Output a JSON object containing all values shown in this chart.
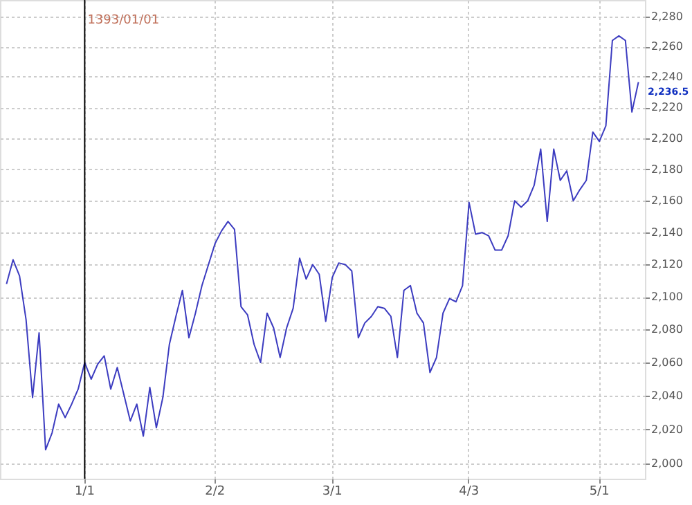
{
  "chart_data": {
    "type": "line",
    "categories": [
      null,
      null,
      null,
      null,
      null,
      null,
      null,
      null,
      null,
      null,
      null,
      null,
      "1/1",
      null,
      null,
      null,
      null,
      null,
      null,
      null,
      null,
      null,
      null,
      null,
      null,
      null,
      null,
      null,
      null,
      null,
      null,
      null,
      "2/2",
      null,
      null,
      null,
      null,
      null,
      null,
      null,
      null,
      null,
      null,
      null,
      null,
      null,
      null,
      null,
      null,
      null,
      "3/1",
      null,
      null,
      null,
      null,
      null,
      null,
      null,
      null,
      null,
      null,
      null,
      null,
      null,
      null,
      null,
      null,
      null,
      null,
      null,
      null,
      "4/3",
      null,
      null,
      null,
      null,
      null,
      null,
      null,
      null,
      null,
      null,
      null,
      null,
      null,
      null,
      null,
      null,
      null,
      null,
      null,
      "5/1",
      null,
      null,
      null,
      null,
      null,
      null
    ],
    "series": [
      {
        "color": "#3c3cc0",
        "values": [
          2108,
          2123,
          2113,
          2086,
          2039,
          2078,
          2008,
          2018,
          2035,
          2027,
          2035,
          2044,
          2060,
          2050,
          2059,
          2064,
          2044,
          2057,
          2041,
          2025,
          2035,
          2016,
          2045,
          2021,
          2039,
          2071,
          2088,
          2104,
          2075,
          2090,
          2107,
          2120,
          2133,
          2141,
          2147,
          2142,
          2094,
          2089,
          2071,
          2060,
          2090,
          2081,
          2063,
          2081,
          2093,
          2124,
          2111,
          2120,
          2114,
          2085,
          2112,
          2121,
          2120,
          2116,
          2075,
          2084,
          2088,
          2094,
          2093,
          2088,
          2063,
          2104,
          2107,
          2090,
          2084,
          2054,
          2063,
          2090,
          2099,
          2097,
          2107,
          2159,
          2139,
          2140,
          2138,
          2129,
          2129,
          2138,
          2160,
          2156,
          2160,
          2170,
          2193,
          2147,
          2193,
          2173,
          2179,
          2160,
          2167,
          2173,
          2204,
          2198,
          2208,
          2264,
          2267,
          2264,
          2217,
          2236.5
        ]
      }
    ],
    "ylim": [
      1991,
      2291
    ],
    "yticks": [
      {
        "value": 2000,
        "label": "2,000"
      },
      {
        "value": 2020,
        "label": "2,020"
      },
      {
        "value": 2040,
        "label": "2,040"
      },
      {
        "value": 2060,
        "label": "2,060"
      },
      {
        "value": 2080,
        "label": "2,080"
      },
      {
        "value": 2100,
        "label": "2,100"
      },
      {
        "value": 2120,
        "label": "2,120"
      },
      {
        "value": 2140,
        "label": "2,140"
      },
      {
        "value": 2160,
        "label": "2,160"
      },
      {
        "value": 2180,
        "label": "2,180"
      },
      {
        "value": 2200,
        "label": "2,200"
      },
      {
        "value": 2220,
        "label": "2,220"
      },
      {
        "value": 2240,
        "label": "2,240"
      },
      {
        "value": 2260,
        "label": "2,260"
      },
      {
        "value": 2280,
        "label": "2,280"
      }
    ],
    "log": true,
    "grid": true,
    "marker": "none",
    "line_style": "solid",
    "ref_lines": [
      {
        "axis": "x",
        "value": "1/1",
        "label": "1393/01/01",
        "color": "#000000"
      }
    ],
    "annotations": [
      "2,236.5"
    ]
  }
}
